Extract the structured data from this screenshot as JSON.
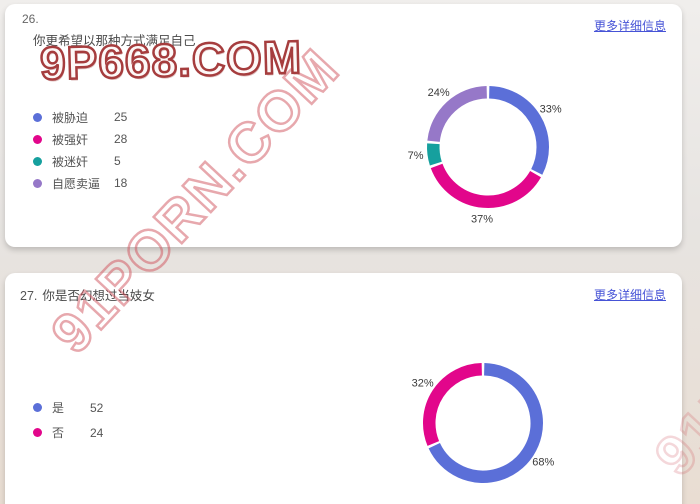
{
  "page": {
    "background_color": "#e7e4e1",
    "link_color": "#4653d6",
    "watermark_red": "#a63d3e"
  },
  "watermarks": {
    "site_badge": "9P668.COM",
    "diagonal": "91PORN.COM"
  },
  "cards": [
    {
      "question_number": "26.",
      "question_title": "你更希望以那种方式满足自己",
      "more_link": "更多详细信息"
    },
    {
      "question_number": "27.",
      "question_title": "你是否幻想过当妓女",
      "more_link": "更多详细信息"
    }
  ],
  "chart_data": [
    {
      "type": "pie",
      "subtype": "donut",
      "title": "你更希望以那种方式满足自己",
      "categories": [
        "被胁迫",
        "被强奸",
        "被迷奸",
        "自愿卖逼"
      ],
      "values": [
        25,
        28,
        5,
        18
      ],
      "percent_labels": [
        "33%",
        "37%",
        "7%",
        "24%"
      ],
      "colors": [
        "#5b6fd8",
        "#e2068b",
        "#16a09e",
        "#9678c8"
      ],
      "legend_position": "left",
      "start_angle_deg": 0,
      "direction": "clockwise"
    },
    {
      "type": "pie",
      "subtype": "donut",
      "title": "你是否幻想过当妓女",
      "categories": [
        "是",
        "否"
      ],
      "values": [
        52,
        24
      ],
      "percent_labels": [
        "68%",
        "32%"
      ],
      "colors": [
        "#5b6fd8",
        "#e2068b"
      ],
      "legend_position": "left",
      "start_angle_deg": 0,
      "direction": "clockwise"
    }
  ]
}
